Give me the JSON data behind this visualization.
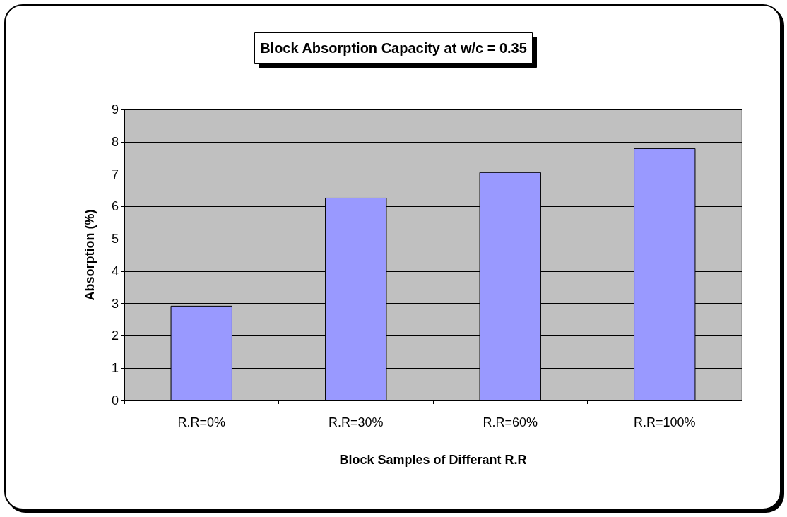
{
  "chart_data": {
    "type": "bar",
    "title": "Block Absorption Capacity at w/c = 0.35",
    "xlabel": "Block Samples of Differant R.R",
    "ylabel": "Absorption (%)",
    "categories": [
      "R.R=0%",
      "R.R=30%",
      "R.R=60%",
      "R.R=100%"
    ],
    "values": [
      2.93,
      6.27,
      7.06,
      7.8
    ],
    "color": "#9999ff",
    "ylim": [
      0,
      9
    ],
    "yticks": [
      0,
      1,
      2,
      3,
      4,
      5,
      6,
      7,
      8,
      9
    ],
    "grid": "y"
  }
}
